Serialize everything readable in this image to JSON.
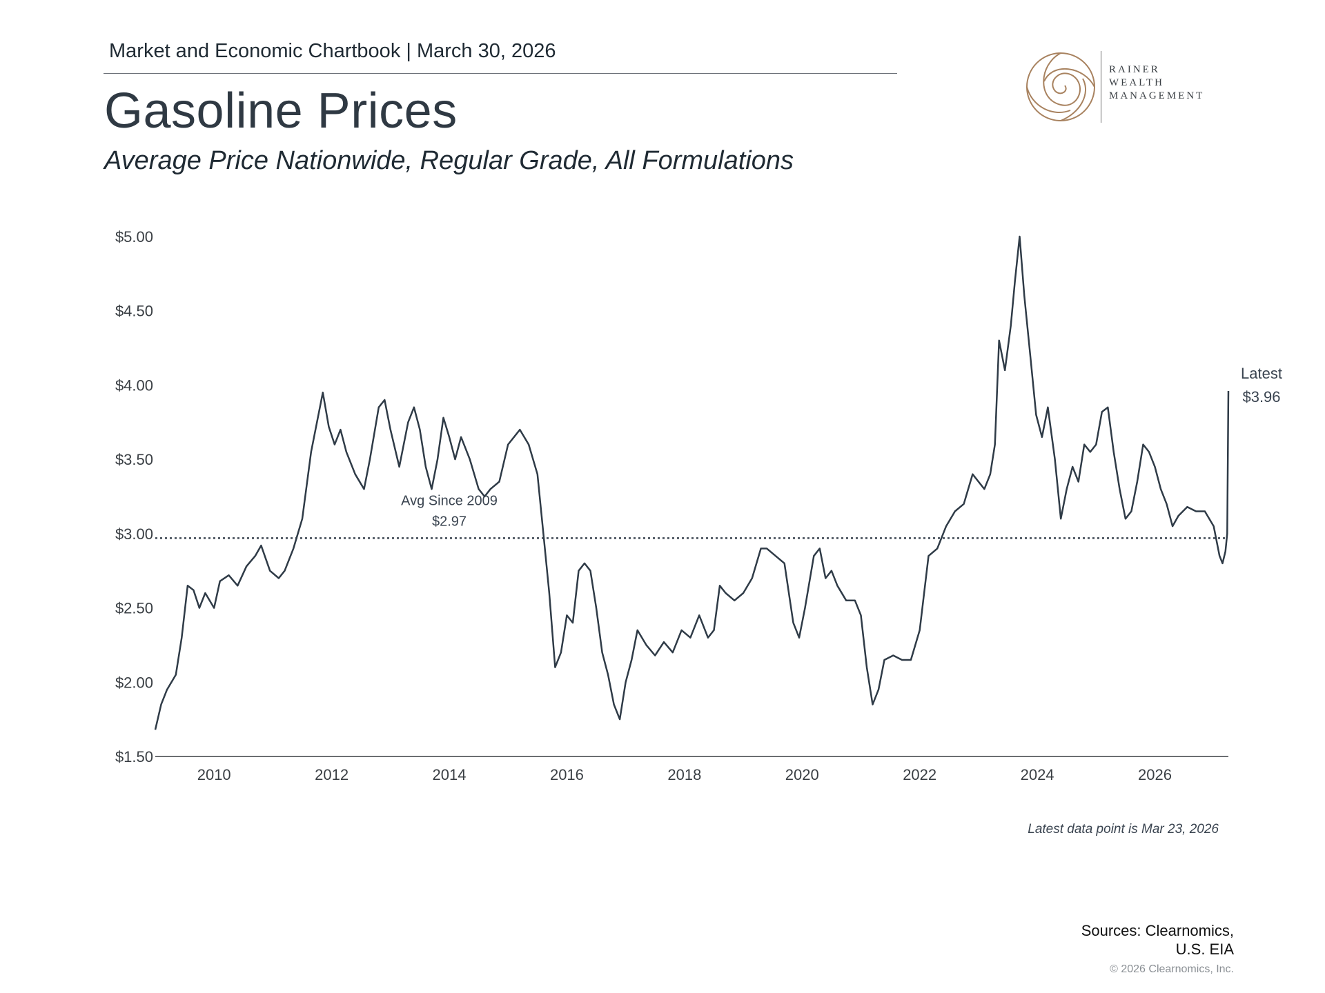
{
  "header": {
    "chartbook": "Market and Economic Chartbook | March 30, 2026",
    "title": "Gasoline Prices",
    "subtitle": "Average Price Nationwide, Regular Grade, All Formulations"
  },
  "logo": {
    "line1": "RAINER",
    "line2": "WEALTH",
    "line3": "MANAGEMENT",
    "color": "#a8825f"
  },
  "colors": {
    "line": "#2f3b47",
    "axis": "#3a3f44"
  },
  "chart_data": {
    "type": "line",
    "title": "Gasoline Prices",
    "subtitle": "Average Price Nationwide, Regular Grade, All Formulations",
    "xlim": [
      2009.0,
      2027.25
    ],
    "ylim": [
      1.5,
      5.0
    ],
    "y_ticks": [
      1.5,
      2.0,
      2.5,
      3.0,
      3.5,
      4.0,
      4.5,
      5.0
    ],
    "y_tick_labels": [
      "$1.50",
      "$2.00",
      "$2.50",
      "$3.00",
      "$3.50",
      "$4.00",
      "$4.50",
      "$5.00"
    ],
    "x_ticks": [
      2010,
      2012,
      2014,
      2016,
      2018,
      2020,
      2022,
      2024,
      2026
    ],
    "x_tick_labels": [
      "2010",
      "2012",
      "2014",
      "2016",
      "2018",
      "2020",
      "2022",
      "2024",
      "2026"
    ],
    "grid": false,
    "reference_line": {
      "value": 2.97,
      "label": "Avg Since 2009",
      "value_label": "$2.97",
      "style": "dotted"
    },
    "latest": {
      "label": "Latest",
      "value_label": "$3.96",
      "value": 3.96,
      "date": "2026-03-23"
    },
    "series": [
      {
        "values": [
          [
            2009.0,
            1.68
          ],
          [
            2009.1,
            1.85
          ],
          [
            2009.2,
            1.95
          ],
          [
            2009.35,
            2.05
          ],
          [
            2009.45,
            2.3
          ],
          [
            2009.55,
            2.65
          ],
          [
            2009.65,
            2.62
          ],
          [
            2009.75,
            2.5
          ],
          [
            2009.85,
            2.6
          ],
          [
            2010.0,
            2.5
          ],
          [
            2010.1,
            2.68
          ],
          [
            2010.25,
            2.72
          ],
          [
            2010.4,
            2.65
          ],
          [
            2010.55,
            2.78
          ],
          [
            2010.7,
            2.85
          ],
          [
            2010.8,
            2.92
          ],
          [
            2010.95,
            2.75
          ],
          [
            2011.1,
            2.7
          ],
          [
            2011.2,
            2.75
          ],
          [
            2011.35,
            2.9
          ],
          [
            2011.5,
            3.1
          ],
          [
            2011.65,
            3.55
          ],
          [
            2011.75,
            3.75
          ],
          [
            2011.85,
            3.95
          ],
          [
            2011.95,
            3.72
          ],
          [
            2012.05,
            3.6
          ],
          [
            2012.15,
            3.7
          ],
          [
            2012.25,
            3.55
          ],
          [
            2012.4,
            3.4
          ],
          [
            2012.55,
            3.3
          ],
          [
            2012.65,
            3.5
          ],
          [
            2012.8,
            3.85
          ],
          [
            2012.9,
            3.9
          ],
          [
            2013.0,
            3.7
          ],
          [
            2013.15,
            3.45
          ],
          [
            2013.3,
            3.75
          ],
          [
            2013.4,
            3.85
          ],
          [
            2013.5,
            3.7
          ],
          [
            2013.6,
            3.45
          ],
          [
            2013.7,
            3.3
          ],
          [
            2013.8,
            3.5
          ],
          [
            2013.9,
            3.78
          ],
          [
            2014.0,
            3.65
          ],
          [
            2014.1,
            3.5
          ],
          [
            2014.2,
            3.65
          ],
          [
            2014.35,
            3.5
          ],
          [
            2014.5,
            3.3
          ],
          [
            2014.6,
            3.25
          ],
          [
            2014.7,
            3.3
          ],
          [
            2014.85,
            3.35
          ],
          [
            2015.0,
            3.6
          ],
          [
            2015.1,
            3.65
          ],
          [
            2015.2,
            3.7
          ],
          [
            2015.35,
            3.6
          ],
          [
            2015.5,
            3.4
          ],
          [
            2015.6,
            3.0
          ],
          [
            2015.7,
            2.6
          ],
          [
            2015.8,
            2.1
          ],
          [
            2015.9,
            2.2
          ],
          [
            2016.0,
            2.45
          ],
          [
            2016.1,
            2.4
          ],
          [
            2016.2,
            2.75
          ],
          [
            2016.3,
            2.8
          ],
          [
            2016.4,
            2.75
          ],
          [
            2016.5,
            2.5
          ],
          [
            2016.6,
            2.2
          ],
          [
            2016.7,
            2.05
          ],
          [
            2016.8,
            1.85
          ],
          [
            2016.9,
            1.75
          ],
          [
            2017.0,
            2.0
          ],
          [
            2017.1,
            2.15
          ],
          [
            2017.2,
            2.35
          ],
          [
            2017.35,
            2.25
          ],
          [
            2017.5,
            2.18
          ],
          [
            2017.65,
            2.27
          ],
          [
            2017.8,
            2.2
          ],
          [
            2017.95,
            2.35
          ],
          [
            2018.1,
            2.3
          ],
          [
            2018.25,
            2.45
          ],
          [
            2018.4,
            2.3
          ],
          [
            2018.5,
            2.35
          ],
          [
            2018.6,
            2.65
          ],
          [
            2018.7,
            2.6
          ],
          [
            2018.85,
            2.55
          ],
          [
            2019.0,
            2.6
          ],
          [
            2019.15,
            2.7
          ],
          [
            2019.3,
            2.9
          ],
          [
            2019.4,
            2.9
          ],
          [
            2019.55,
            2.85
          ],
          [
            2019.7,
            2.8
          ],
          [
            2019.85,
            2.4
          ],
          [
            2019.95,
            2.3
          ],
          [
            2020.05,
            2.5
          ],
          [
            2020.2,
            2.85
          ],
          [
            2020.3,
            2.9
          ],
          [
            2020.4,
            2.7
          ],
          [
            2020.5,
            2.75
          ],
          [
            2020.6,
            2.65
          ],
          [
            2020.75,
            2.55
          ],
          [
            2020.9,
            2.55
          ],
          [
            2021.0,
            2.45
          ],
          [
            2021.1,
            2.1
          ],
          [
            2021.2,
            1.85
          ],
          [
            2021.3,
            1.95
          ],
          [
            2021.4,
            2.15
          ],
          [
            2021.55,
            2.18
          ],
          [
            2021.7,
            2.15
          ],
          [
            2021.85,
            2.15
          ],
          [
            2022.0,
            2.35
          ],
          [
            2022.15,
            2.85
          ],
          [
            2022.3,
            2.9
          ],
          [
            2022.45,
            3.05
          ],
          [
            2022.6,
            3.15
          ],
          [
            2022.75,
            3.2
          ],
          [
            2022.9,
            3.4
          ],
          [
            2023.0,
            3.35
          ],
          [
            2023.1,
            3.3
          ],
          [
            2023.2,
            3.4
          ],
          [
            2023.28,
            3.6
          ],
          [
            2023.35,
            4.3
          ],
          [
            2023.45,
            4.1
          ],
          [
            2023.55,
            4.4
          ],
          [
            2023.62,
            4.7
          ],
          [
            2023.7,
            5.0
          ],
          [
            2023.78,
            4.6
          ],
          [
            2023.88,
            4.2
          ],
          [
            2023.98,
            3.8
          ],
          [
            2024.08,
            3.65
          ],
          [
            2024.18,
            3.85
          ],
          [
            2024.3,
            3.5
          ],
          [
            2024.4,
            3.1
          ],
          [
            2024.5,
            3.3
          ],
          [
            2024.6,
            3.45
          ],
          [
            2024.7,
            3.35
          ],
          [
            2024.8,
            3.6
          ],
          [
            2024.9,
            3.55
          ],
          [
            2025.0,
            3.6
          ],
          [
            2025.1,
            3.82
          ],
          [
            2025.2,
            3.85
          ],
          [
            2025.3,
            3.55
          ],
          [
            2025.4,
            3.3
          ],
          [
            2025.5,
            3.1
          ],
          [
            2025.6,
            3.15
          ],
          [
            2025.7,
            3.35
          ],
          [
            2025.8,
            3.6
          ],
          [
            2025.9,
            3.55
          ],
          [
            2026.0,
            3.45
          ],
          [
            2026.1,
            3.3
          ],
          [
            2026.2,
            3.2
          ],
          [
            2026.3,
            3.05
          ],
          [
            2026.4,
            3.12
          ],
          [
            2026.55,
            3.18
          ],
          [
            2026.7,
            3.15
          ],
          [
            2026.85,
            3.15
          ],
          [
            2027.0,
            3.05
          ],
          [
            2027.1,
            2.85
          ],
          [
            2027.15,
            2.8
          ],
          [
            2027.2,
            2.88
          ],
          [
            2027.23,
            3.0
          ],
          [
            2027.25,
            3.96
          ]
        ]
      }
    ]
  },
  "footer": {
    "latest_note": "Latest data point is Mar 23, 2026",
    "sources_line1": "Sources: Clearnomics,",
    "sources_line2": "U.S. EIA",
    "copyright": "© 2026 Clearnomics, Inc."
  }
}
